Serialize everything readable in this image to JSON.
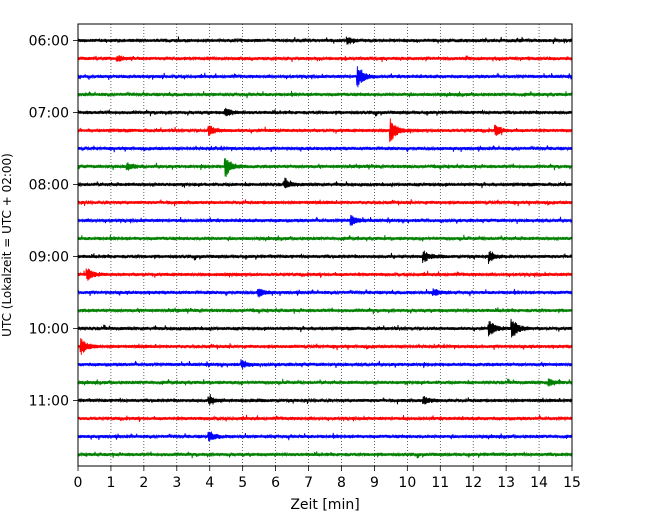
{
  "chart_data": {
    "type": "line",
    "title": "",
    "xlabel": "Zeit  [min]",
    "ylabel": "UTC (Lokalzeit = UTC + 02:00)",
    "xlim": [
      0,
      15
    ],
    "x_ticks": [
      "0",
      "1",
      "2",
      "3",
      "4",
      "5",
      "6",
      "7",
      "8",
      "9",
      "10",
      "11",
      "12",
      "13",
      "14",
      "15"
    ],
    "y_ticks": [
      "06:00",
      "07:00",
      "08:00",
      "09:00",
      "10:00",
      "11:00"
    ],
    "grid": "vertical dotted",
    "trace_interval_min": 15,
    "colors": [
      "#000000",
      "#ff0000",
      "#0000ff",
      "#008000"
    ],
    "series": [
      {
        "start": "06:00",
        "color": "#000000",
        "events": [
          {
            "t": 8.2,
            "amp": 0.25
          }
        ]
      },
      {
        "start": "06:15",
        "color": "#ff0000",
        "events": [
          {
            "t": 1.2,
            "amp": 0.2
          }
        ]
      },
      {
        "start": "06:30",
        "color": "#0000ff",
        "events": [
          {
            "t": 8.5,
            "amp": 0.9
          }
        ]
      },
      {
        "start": "06:45",
        "color": "#008000",
        "events": []
      },
      {
        "start": "07:00",
        "color": "#000000",
        "events": [
          {
            "t": 4.5,
            "amp": 0.3
          }
        ]
      },
      {
        "start": "07:15",
        "color": "#ff0000",
        "events": [
          {
            "t": 4.0,
            "amp": 0.4
          },
          {
            "t": 9.5,
            "amp": 1.0
          },
          {
            "t": 12.7,
            "amp": 0.4
          }
        ]
      },
      {
        "start": "07:30",
        "color": "#0000ff",
        "events": []
      },
      {
        "start": "07:45",
        "color": "#008000",
        "events": [
          {
            "t": 4.5,
            "amp": 0.8
          },
          {
            "t": 1.5,
            "amp": 0.3
          }
        ]
      },
      {
        "start": "08:00",
        "color": "#000000",
        "events": [
          {
            "t": 6.3,
            "amp": 0.3
          }
        ]
      },
      {
        "start": "08:15",
        "color": "#ff0000",
        "events": []
      },
      {
        "start": "08:30",
        "color": "#0000ff",
        "events": [
          {
            "t": 8.3,
            "amp": 0.4
          }
        ]
      },
      {
        "start": "08:45",
        "color": "#008000",
        "events": []
      },
      {
        "start": "09:00",
        "color": "#000000",
        "events": [
          {
            "t": 10.5,
            "amp": 0.45
          },
          {
            "t": 12.5,
            "amp": 0.45
          }
        ]
      },
      {
        "start": "09:15",
        "color": "#ff0000",
        "events": [
          {
            "t": 0.3,
            "amp": 0.5
          }
        ]
      },
      {
        "start": "09:30",
        "color": "#0000ff",
        "events": [
          {
            "t": 5.5,
            "amp": 0.3
          },
          {
            "t": 10.8,
            "amp": 0.3
          }
        ]
      },
      {
        "start": "09:45",
        "color": "#008000",
        "events": []
      },
      {
        "start": "10:00",
        "color": "#000000",
        "events": [
          {
            "t": 12.5,
            "amp": 0.7
          },
          {
            "t": 13.2,
            "amp": 0.8
          }
        ]
      },
      {
        "start": "10:15",
        "color": "#ff0000",
        "events": [
          {
            "t": 0.1,
            "amp": 0.7
          }
        ]
      },
      {
        "start": "10:30",
        "color": "#0000ff",
        "events": [
          {
            "t": 5.0,
            "amp": 0.3
          }
        ]
      },
      {
        "start": "10:45",
        "color": "#008000",
        "events": [
          {
            "t": 14.3,
            "amp": 0.3
          }
        ]
      },
      {
        "start": "11:00",
        "color": "#000000",
        "events": [
          {
            "t": 4.0,
            "amp": 0.3
          },
          {
            "t": 10.5,
            "amp": 0.3
          }
        ]
      },
      {
        "start": "11:15",
        "color": "#ff0000",
        "events": []
      },
      {
        "start": "11:30",
        "color": "#0000ff",
        "events": [
          {
            "t": 4.0,
            "amp": 0.35
          }
        ]
      },
      {
        "start": "11:45",
        "color": "#008000",
        "events": []
      }
    ]
  }
}
